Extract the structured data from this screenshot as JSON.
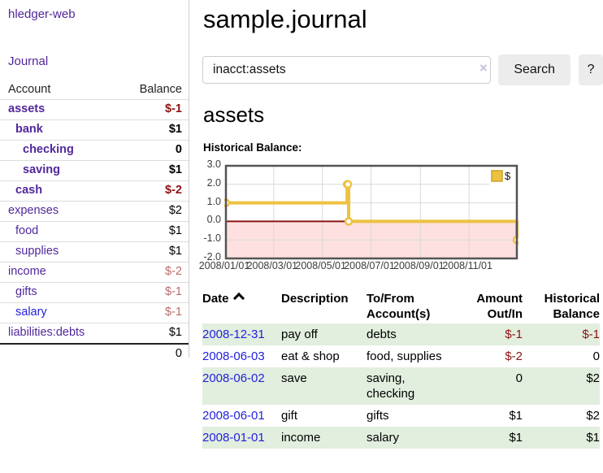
{
  "colors": {
    "accent_purple": "#51279B",
    "link_blue": "#2222DD",
    "negative_dark": "#8C1212",
    "negative_muted": "#BC6B6B",
    "row_green": "#E2EEDE",
    "chart_gold": "#EDC240",
    "chart_negative_fill": "rgba(255,0,0,0.12)",
    "chart_zero_line": "#8C1616"
  },
  "sidebar": {
    "app_title": "hledger-web",
    "journal_link": "Journal",
    "accounts_table": {
      "headers": {
        "account": "Account",
        "balance": "Balance"
      },
      "rows": [
        {
          "name": "assets",
          "level": 1,
          "bold": true,
          "balance": "$-1"
        },
        {
          "name": "bank",
          "level": 2,
          "bold": true,
          "balance": "$1"
        },
        {
          "name": "checking",
          "level": 3,
          "bold": true,
          "balance": "0"
        },
        {
          "name": "saving",
          "level": 3,
          "bold": true,
          "balance": "$1"
        },
        {
          "name": "cash",
          "level": 2,
          "bold": true,
          "balance": "$-2"
        },
        {
          "name": "expenses",
          "level": 1,
          "bold": false,
          "balance": "$2"
        },
        {
          "name": "food",
          "level": 2,
          "bold": false,
          "balance": "$1"
        },
        {
          "name": "supplies",
          "level": 2,
          "bold": false,
          "balance": "$1"
        },
        {
          "name": "income",
          "level": 1,
          "bold": false,
          "balance": "$-2"
        },
        {
          "name": "gifts",
          "level": 2,
          "bold": false,
          "balance": "$-1"
        },
        {
          "name": "salary",
          "level": 2,
          "bold": false,
          "balance": "$-1",
          "link_style": "unvisited"
        },
        {
          "name": "liabilities:debts",
          "level": 1,
          "bold": false,
          "balance": "$1"
        }
      ],
      "total": "0"
    }
  },
  "header": {
    "title": "sample.journal"
  },
  "search": {
    "value": "inacct:assets",
    "clear_icon": "×",
    "button_label": "Search",
    "help_label": "?"
  },
  "account_page": {
    "heading": "assets",
    "chart_label": "Historical Balance:"
  },
  "chart_data": {
    "type": "line",
    "step": true,
    "series": [
      {
        "name": "$",
        "color": "#EDC240",
        "points": [
          [
            "2008-01-01",
            1
          ],
          [
            "2008-06-01",
            2
          ],
          [
            "2008-06-02",
            2
          ],
          [
            "2008-06-03",
            0
          ],
          [
            "2008-12-31",
            -1
          ]
        ]
      }
    ],
    "xrange": [
      "2008-01-01",
      "2008-12-31"
    ],
    "ylim": [
      -2,
      3
    ],
    "yticks": [
      "3.0",
      "2.0",
      "1.0",
      "0.0",
      "-1.0",
      "-2.0"
    ],
    "xticks": [
      {
        "label": "2008/01/01",
        "date": "2008-01-01"
      },
      {
        "label": "2008/03/01",
        "date": "2008-03-01"
      },
      {
        "label": "2008/05/01",
        "date": "2008-05-01"
      },
      {
        "label": "2008/07/01",
        "date": "2008-07-01"
      },
      {
        "label": "2008/09/01",
        "date": "2008-09-01"
      },
      {
        "label": "2008/11/01",
        "date": "2008-11-01"
      }
    ],
    "grid": true,
    "legend_position": "top-right",
    "negative_region_shaded": true
  },
  "transactions": {
    "columns": [
      {
        "line1": "Date",
        "line2": "",
        "align": "left",
        "sorted": "asc"
      },
      {
        "line1": "Description",
        "line2": "",
        "align": "left"
      },
      {
        "line1": "To/From",
        "line2": "Account(s)",
        "align": "left"
      },
      {
        "line1": "Amount",
        "line2": "Out/In",
        "align": "right"
      },
      {
        "line1": "Historical",
        "line2": "Balance",
        "align": "right"
      }
    ],
    "rows": [
      {
        "date": "2008-12-31",
        "description": "pay off",
        "accounts": "debts",
        "amount": "$-1",
        "balance": "$-1"
      },
      {
        "date": "2008-06-03",
        "description": "eat & shop",
        "accounts": "food, supplies",
        "amount": "$-2",
        "balance": "0"
      },
      {
        "date": "2008-06-02",
        "description": "save",
        "accounts": "saving,\nchecking",
        "amount": "0",
        "balance": "$2"
      },
      {
        "date": "2008-06-01",
        "description": "gift",
        "accounts": "gifts",
        "amount": "$1",
        "balance": "$2"
      },
      {
        "date": "2008-01-01",
        "description": "income",
        "accounts": "salary",
        "amount": "$1",
        "balance": "$1"
      }
    ]
  }
}
